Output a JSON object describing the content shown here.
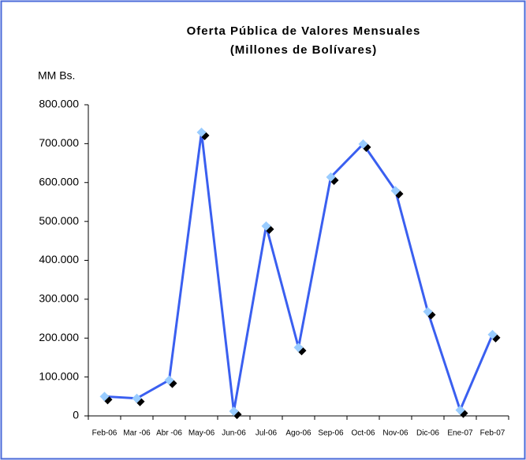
{
  "chart_data": {
    "type": "line",
    "title": "Oferta Pública de Valores Mensuales",
    "subtitle": "(Millones de Bolívares)",
    "y_label": "MM Bs.",
    "categories": [
      "Feb-06",
      "Mar -06",
      "Abr -06",
      "May-06",
      "Jun-06",
      "Jul-06",
      "Ago-06",
      "Sep-06",
      "Oct-06",
      "Nov-06",
      "Dic-06",
      "Ene-07",
      "Feb-07"
    ],
    "series": [
      {
        "name": "Oferta Pública",
        "color": "#3a5ff0",
        "marker_color": "#99ccff",
        "values": [
          50000,
          45000,
          92000,
          729000,
          12000,
          488000,
          176000,
          614000,
          699000,
          579000,
          268000,
          15000,
          209000
        ]
      }
    ],
    "ylim": [
      0,
      800000
    ],
    "yticks": [
      0,
      {
        "value": 100000,
        "label": "100.000"
      },
      {
        "value": 200000,
        "label": "200.000"
      },
      {
        "value": 300000,
        "label": "300.000"
      },
      {
        "value": 400000,
        "label": "400.000"
      },
      {
        "value": 500000,
        "label": "500.000"
      },
      {
        "value": 600000,
        "label": "600.000"
      },
      {
        "value": 700000,
        "label": "700.000"
      },
      {
        "value": 800000,
        "label": "800.000"
      }
    ],
    "grid": false
  }
}
